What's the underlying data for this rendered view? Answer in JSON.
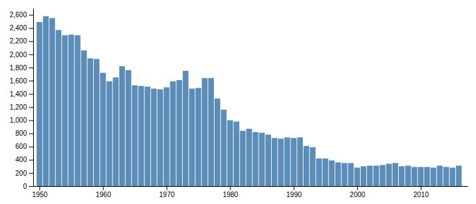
{
  "chart_data": {
    "type": "bar",
    "x": [
      1950,
      1951,
      1952,
      1953,
      1954,
      1955,
      1956,
      1957,
      1958,
      1959,
      1960,
      1961,
      1962,
      1963,
      1964,
      1965,
      1966,
      1967,
      1968,
      1969,
      1970,
      1971,
      1972,
      1973,
      1974,
      1975,
      1976,
      1977,
      1978,
      1979,
      1980,
      1981,
      1982,
      1983,
      1984,
      1985,
      1986,
      1987,
      1988,
      1989,
      1990,
      1991,
      1992,
      1993,
      1994,
      1995,
      1996,
      1997,
      1998,
      1999,
      2000,
      2001,
      2002,
      2003,
      2004,
      2005,
      2006,
      2007,
      2008,
      2009,
      2010,
      2011,
      2012,
      2013,
      2014,
      2015,
      2016
    ],
    "values": [
      2490,
      2580,
      2550,
      2370,
      2290,
      2300,
      2290,
      2060,
      1940,
      1930,
      1720,
      1590,
      1650,
      1820,
      1760,
      1530,
      1520,
      1510,
      1480,
      1470,
      1500,
      1590,
      1610,
      1750,
      1480,
      1490,
      1640,
      1640,
      1330,
      1160,
      1000,
      980,
      840,
      870,
      820,
      810,
      780,
      730,
      720,
      740,
      730,
      740,
      610,
      590,
      420,
      420,
      390,
      360,
      350,
      350,
      280,
      300,
      310,
      310,
      320,
      340,
      350,
      300,
      310,
      290,
      290,
      290,
      280,
      310,
      290,
      280,
      310
    ],
    "color": "#5b8db8",
    "xlim": [
      1949.0,
      2017.4
    ],
    "xticks": [
      1950,
      1960,
      1970,
      1980,
      1990,
      2000,
      2010
    ],
    "ylim": [
      0,
      2700
    ],
    "yticks": [
      0,
      200,
      400,
      600,
      800,
      {
        "value": 1000,
        "label": "1,000"
      },
      {
        "value": 1200,
        "label": "1,200"
      },
      {
        "value": 1400,
        "label": "1,400"
      },
      {
        "value": 1600,
        "label": "1,600"
      },
      {
        "value": 1800,
        "label": "1,800"
      },
      {
        "value": 2000,
        "label": "2,000"
      },
      {
        "value": 2200,
        "label": "2,200"
      },
      {
        "value": 2400,
        "label": "2,400"
      },
      {
        "value": 2600,
        "label": "2,600"
      }
    ],
    "grid": false
  }
}
